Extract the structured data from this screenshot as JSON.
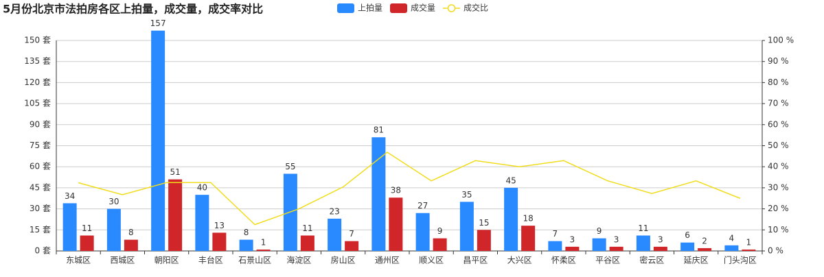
{
  "chart_data": {
    "type": "bar-line",
    "title": "5月份北京市法拍房各区上拍量，成交量，成交率对比",
    "categories": [
      "东城区",
      "西城区",
      "朝阳区",
      "丰台区",
      "石景山区",
      "海淀区",
      "房山区",
      "通州区",
      "顺义区",
      "昌平区",
      "大兴区",
      "怀柔区",
      "平谷区",
      "密云区",
      "延庆区",
      "门头沟区"
    ],
    "series": [
      {
        "name": "上拍量",
        "color": "#2989ff",
        "type": "bar",
        "values": [
          34,
          30,
          157,
          40,
          8,
          55,
          23,
          81,
          27,
          35,
          45,
          7,
          9,
          11,
          6,
          4
        ]
      },
      {
        "name": "成交量",
        "color": "#d0262a",
        "type": "bar",
        "values": [
          11,
          8,
          51,
          13,
          1,
          11,
          7,
          38,
          9,
          15,
          18,
          3,
          3,
          3,
          2,
          1
        ]
      },
      {
        "name": "成交比",
        "color": "#f1dc1b",
        "type": "line",
        "axis": "y2",
        "values": [
          32.4,
          26.7,
          32.5,
          32.5,
          12.5,
          20,
          30.4,
          46.9,
          33.3,
          42.9,
          40,
          42.9,
          33.3,
          27.3,
          33.3,
          25
        ]
      }
    ],
    "ylim": [
      0,
      150
    ],
    "yticks": [
      {
        "value": 0,
        "label": "0 套"
      },
      {
        "value": 15,
        "label": "15 套"
      },
      {
        "value": 30,
        "label": "30 套"
      },
      {
        "value": 45,
        "label": "45 套"
      },
      {
        "value": 60,
        "label": "60 套"
      },
      {
        "value": 75,
        "label": "75 套"
      },
      {
        "value": 90,
        "label": "90 套"
      },
      {
        "value": 105,
        "label": "105 套"
      },
      {
        "value": 120,
        "label": "120 套"
      },
      {
        "value": 135,
        "label": "135 套"
      },
      {
        "value": 150,
        "label": "150 套"
      }
    ],
    "y2lim": [
      0,
      100
    ],
    "y2ticks": [
      {
        "value": 0,
        "label": "0 %"
      },
      {
        "value": 10,
        "label": "10 %"
      },
      {
        "value": 20,
        "label": "20 %"
      },
      {
        "value": 30,
        "label": "30 %"
      },
      {
        "value": 40,
        "label": "40 %"
      },
      {
        "value": 50,
        "label": "50 %"
      },
      {
        "value": 60,
        "label": "60 %"
      },
      {
        "value": 70,
        "label": "70 %"
      },
      {
        "value": 80,
        "label": "80 %"
      },
      {
        "value": 90,
        "label": "90 %"
      },
      {
        "value": 100,
        "label": "100 %"
      }
    ],
    "grid": true,
    "legend": "top"
  }
}
